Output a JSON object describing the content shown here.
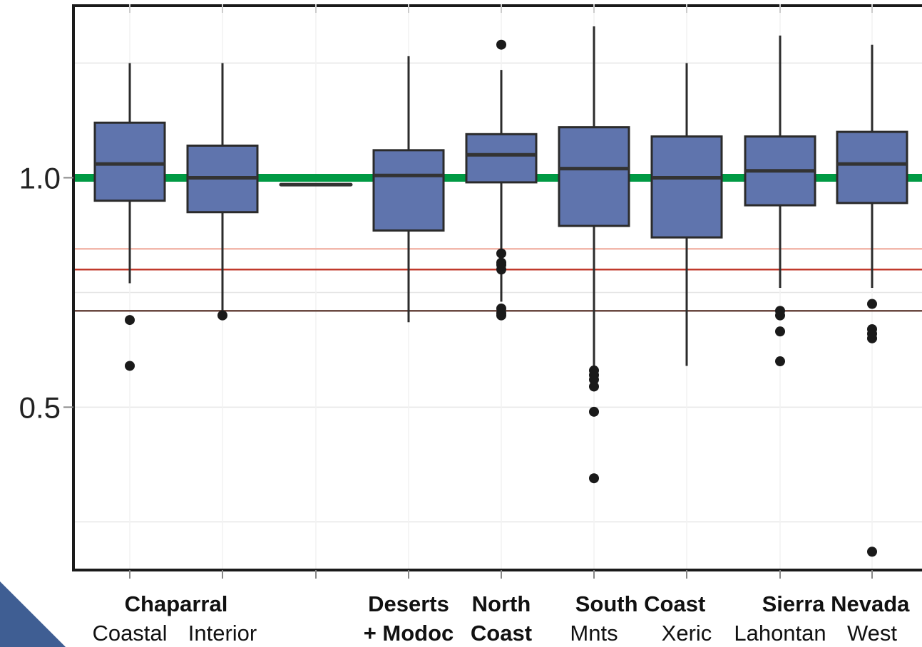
{
  "chart_data": {
    "type": "box",
    "title": "",
    "xlabel": "",
    "ylabel": "",
    "ylim": [
      0.145,
      1.375
    ],
    "yticks": [
      1.0,
      0.5
    ],
    "ytick_labels": [
      "1.0",
      "0.5"
    ],
    "grid": "horizontal",
    "categories": [
      {
        "label": "Coastal",
        "min": 0.77,
        "q1": 0.95,
        "median": 1.03,
        "q3": 1.12,
        "max": 1.25,
        "outliers": [
          0.69,
          0.59
        ]
      },
      {
        "label": "Interior",
        "min": 0.71,
        "q1": 0.925,
        "median": 1.0,
        "q3": 1.07,
        "max": 1.25,
        "outliers": [
          0.7
        ]
      },
      {
        "label": "",
        "min": 0.985,
        "q1": 0.985,
        "median": 0.985,
        "q3": 0.985,
        "max": 0.985,
        "outliers": []
      },
      {
        "label": "+ Modoc",
        "min": 0.685,
        "q1": 0.885,
        "median": 1.005,
        "q3": 1.06,
        "max": 1.265,
        "outliers": []
      },
      {
        "label": "Coast",
        "min": 0.73,
        "q1": 0.99,
        "median": 1.05,
        "q3": 1.095,
        "max": 1.235,
        "outliers": [
          1.29,
          0.835,
          0.815,
          0.81,
          0.8,
          0.715,
          0.705,
          0.7
        ]
      },
      {
        "label": "Mnts",
        "min": 0.59,
        "q1": 0.895,
        "median": 1.02,
        "q3": 1.11,
        "max": 1.33,
        "outliers": [
          0.58,
          0.57,
          0.56,
          0.545,
          0.49,
          0.345
        ]
      },
      {
        "label": "Xeric",
        "min": 0.59,
        "q1": 0.87,
        "median": 1.0,
        "q3": 1.09,
        "max": 1.25,
        "outliers": []
      },
      {
        "label": "Lahontan",
        "min": 0.76,
        "q1": 0.94,
        "median": 1.015,
        "q3": 1.09,
        "max": 1.31,
        "outliers": [
          0.71,
          0.7,
          0.665,
          0.6
        ]
      },
      {
        "label": "West",
        "min": 0.76,
        "q1": 0.945,
        "median": 1.03,
        "q3": 1.1,
        "max": 1.29,
        "outliers": [
          0.725,
          0.67,
          0.66,
          0.65,
          0.185
        ]
      }
    ],
    "group_labels": [
      {
        "text": "Chaparral",
        "from": 0,
        "to": 1
      },
      {
        "text": "Deserts",
        "from": 3,
        "to": 3
      },
      {
        "text": "North",
        "from": 4,
        "to": 4
      },
      {
        "text": "South Coast",
        "from": 5,
        "to": 6
      },
      {
        "text": "Sierra Nevada",
        "from": 7,
        "to": 8
      }
    ],
    "reference_lines": [
      {
        "y": 1.0,
        "color": "#009a44"
      },
      {
        "y": 0.845,
        "color": "#f2b8ac"
      },
      {
        "y": 0.8,
        "color": "#c0392b"
      },
      {
        "y": 0.71,
        "color": "#6b4a42"
      }
    ],
    "colors": {
      "box_fill": "#5f74ad",
      "box_stroke": "#2b2b2b",
      "outlier": "#1a1a1a",
      "grid": "#e6e6e6",
      "corner": "#3f5e93"
    }
  }
}
